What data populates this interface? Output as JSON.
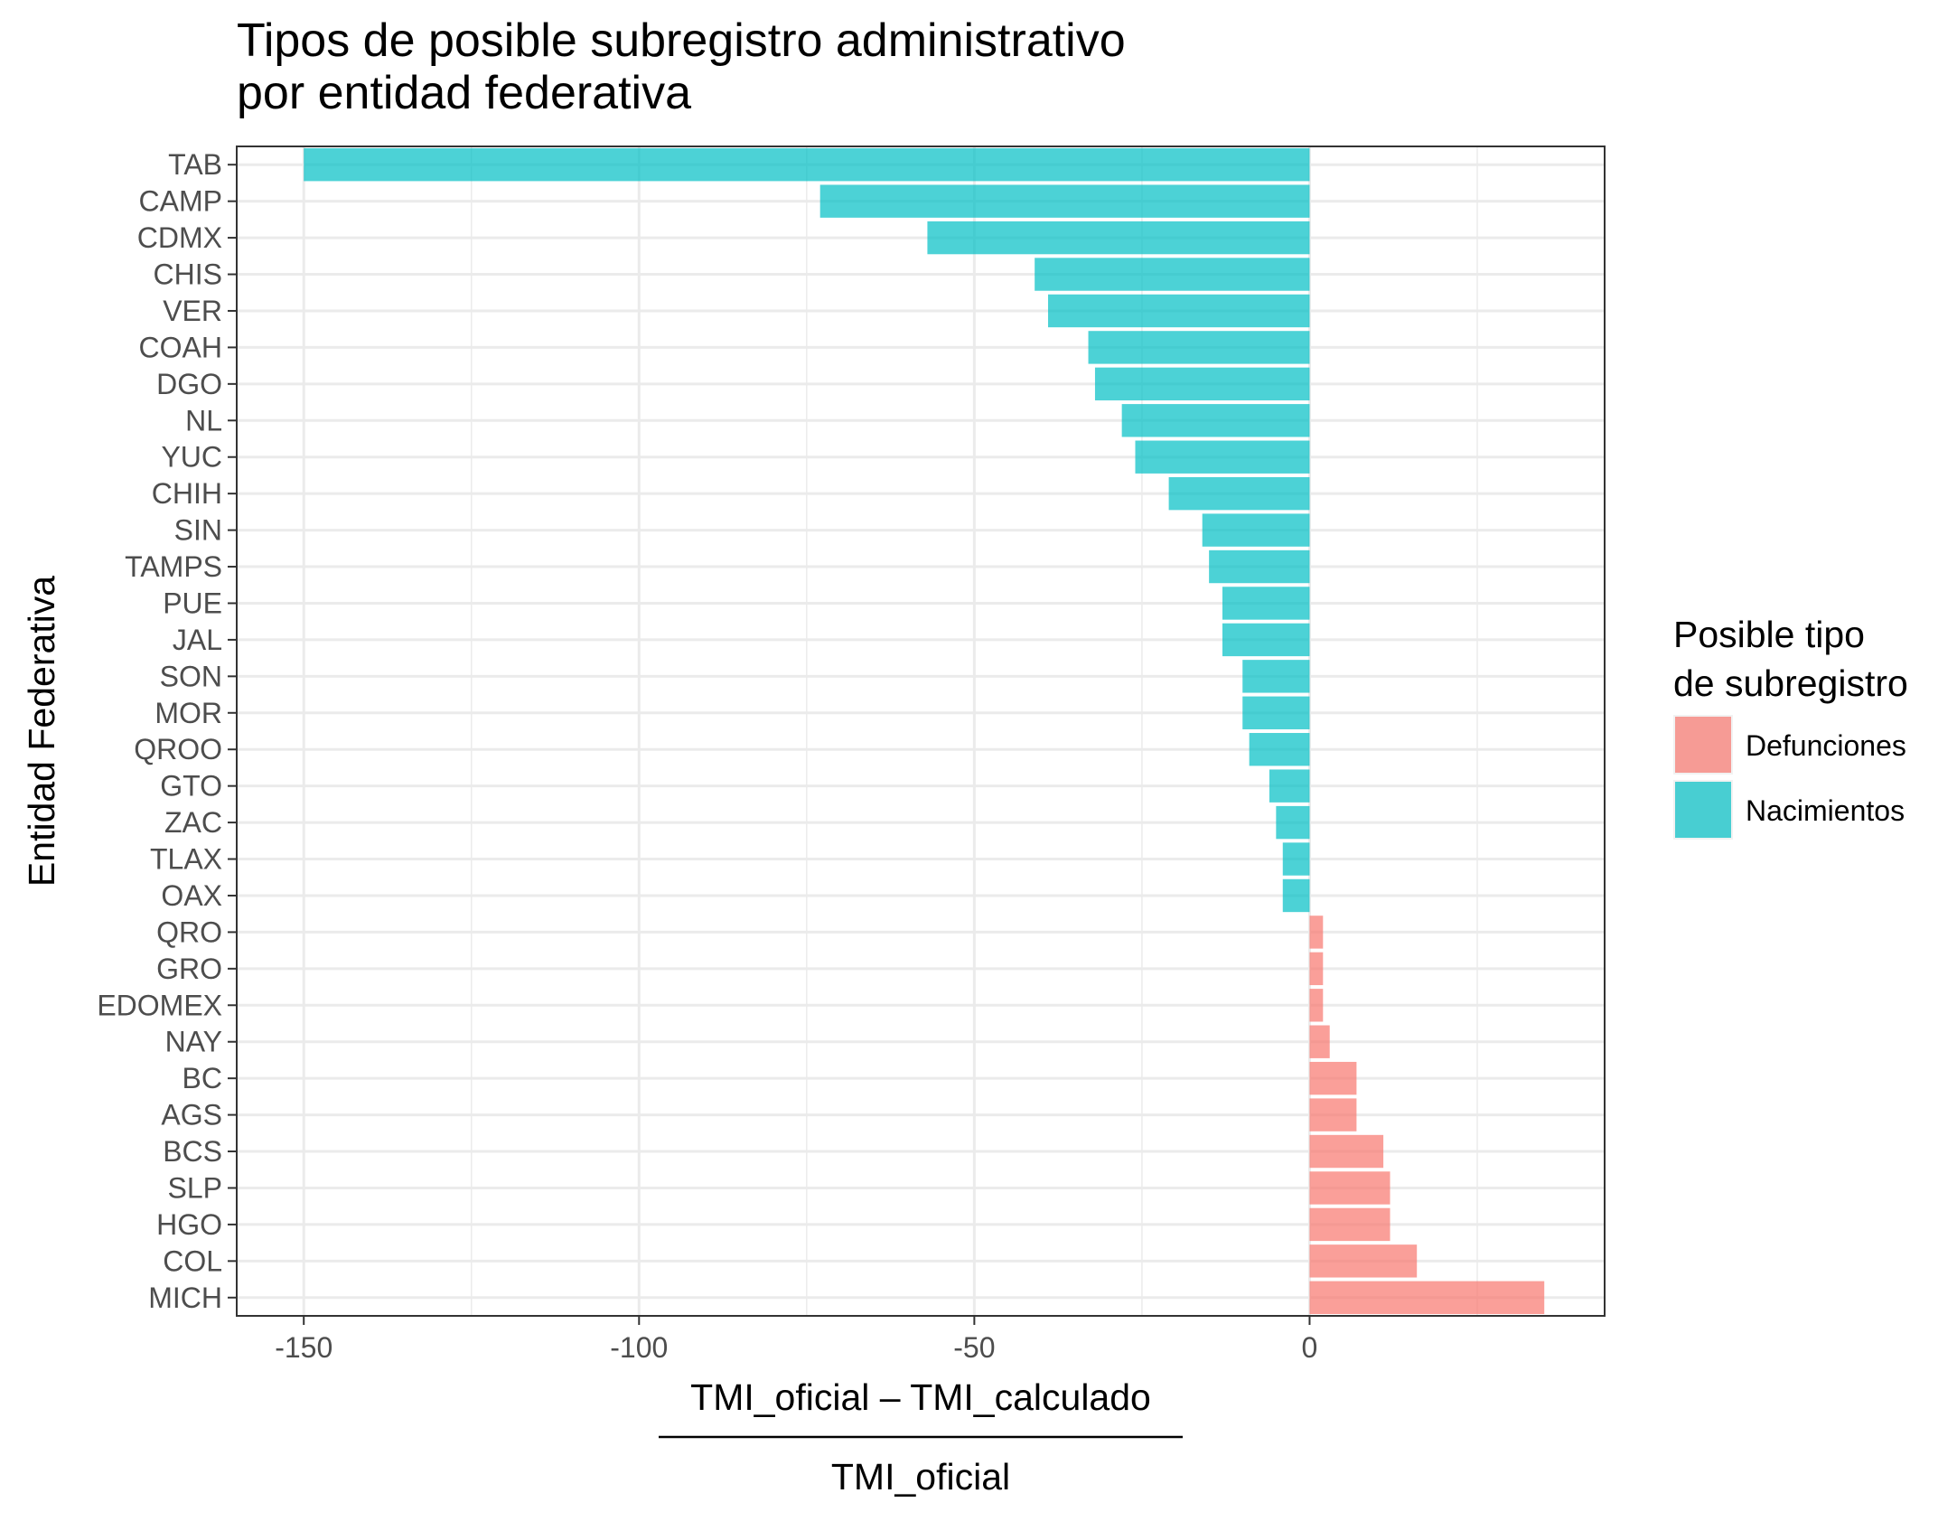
{
  "chart_data": {
    "type": "bar",
    "orientation": "horizontal",
    "title_lines": [
      "Tipos de posible subregistro administrativo",
      "por entidad federativa"
    ],
    "xlabel_numerator": "TMI_oficial – TMI_calculado",
    "xlabel_denominator": "TMI_oficial",
    "ylabel": "Entidad Federativa",
    "xlim": [
      -160,
      44
    ],
    "x_ticks": [
      -150,
      -100,
      -50,
      0
    ],
    "x_tick_labels": [
      "-150",
      "-100",
      "-50",
      "0"
    ],
    "grid": true,
    "legend": {
      "title_lines": [
        "Posible tipo",
        "de subregistro"
      ],
      "position": "right",
      "items": [
        {
          "label": "Defunciones",
          "color": "#F8766D"
        },
        {
          "label": "Nacimientos",
          "color": "#00BFC4"
        }
      ]
    },
    "categories": [
      "TAB",
      "CAMP",
      "CDMX",
      "CHIS",
      "VER",
      "COAH",
      "DGO",
      "NL",
      "YUC",
      "CHIH",
      "SIN",
      "TAMPS",
      "PUE",
      "JAL",
      "SON",
      "MOR",
      "QROO",
      "GTO",
      "ZAC",
      "TLAX",
      "OAX",
      "QRO",
      "GRO",
      "EDOMEX",
      "NAY",
      "BC",
      "AGS",
      "BCS",
      "SLP",
      "HGO",
      "COL",
      "MICH"
    ],
    "values": [
      -150,
      -73,
      -57,
      -41,
      -39,
      -33,
      -32,
      -28,
      -26,
      -21,
      -16,
      -15,
      -13,
      -13,
      -10,
      -10,
      -9,
      -6,
      -5,
      -4,
      -4,
      2,
      2,
      2,
      3,
      7,
      7,
      11,
      12,
      12,
      16,
      35
    ],
    "groups": [
      "Nacimientos",
      "Nacimientos",
      "Nacimientos",
      "Nacimientos",
      "Nacimientos",
      "Nacimientos",
      "Nacimientos",
      "Nacimientos",
      "Nacimientos",
      "Nacimientos",
      "Nacimientos",
      "Nacimientos",
      "Nacimientos",
      "Nacimientos",
      "Nacimientos",
      "Nacimientos",
      "Nacimientos",
      "Nacimientos",
      "Nacimientos",
      "Nacimientos",
      "Nacimientos",
      "Defunciones",
      "Defunciones",
      "Defunciones",
      "Defunciones",
      "Defunciones",
      "Defunciones",
      "Defunciones",
      "Defunciones",
      "Defunciones",
      "Defunciones",
      "Defunciones"
    ]
  }
}
